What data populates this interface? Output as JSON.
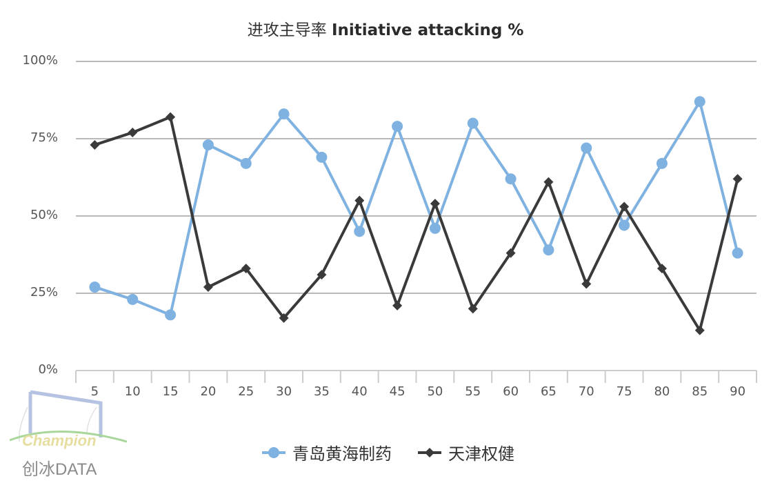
{
  "chart_data": {
    "type": "line",
    "title": "进攻主导率 Initiative attacking %",
    "title_cn": "进攻主导率",
    "title_en": "Initiative attacking %",
    "xlabel": "",
    "ylabel": "",
    "categories": [
      "5",
      "10",
      "15",
      "20",
      "25",
      "30",
      "35",
      "40",
      "45",
      "50",
      "55",
      "60",
      "65",
      "70",
      "75",
      "80",
      "85",
      "90"
    ],
    "y_ticks": [
      "0%",
      "25%",
      "50%",
      "75%",
      "100%"
    ],
    "ylim": [
      0,
      100
    ],
    "grid": true,
    "legend_position": "bottom",
    "series": [
      {
        "name": "青岛黄海制药",
        "color": "#7fb2e0",
        "marker": "circle",
        "values": [
          27,
          23,
          18,
          73,
          67,
          83,
          69,
          45,
          79,
          46,
          80,
          62,
          39,
          72,
          47,
          67,
          87,
          38
        ]
      },
      {
        "name": "天津权健",
        "color": "#3a3a3a",
        "marker": "diamond",
        "values": [
          73,
          77,
          82,
          27,
          33,
          17,
          31,
          55,
          21,
          54,
          20,
          38,
          61,
          28,
          53,
          33,
          13,
          62
        ]
      }
    ]
  },
  "logo": {
    "brand": "Champion",
    "text": "创冰DATA"
  }
}
